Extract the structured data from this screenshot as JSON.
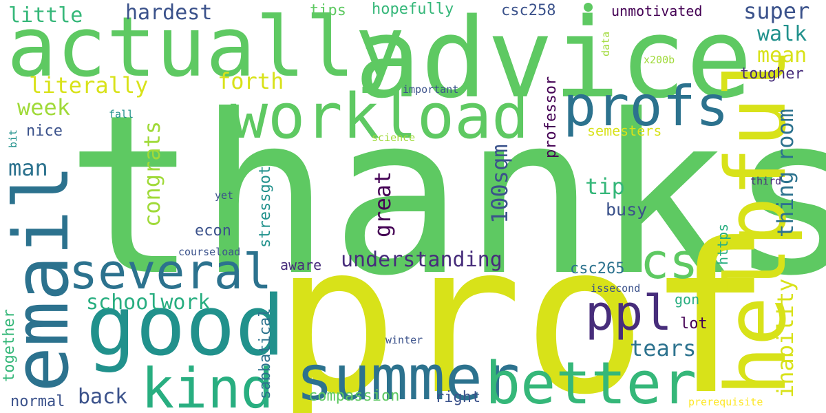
{
  "colors": {
    "background": "#ffffff",
    "palette": [
      "#5ec962",
      "#d8e219",
      "#3b528b",
      "#21918c",
      "#2c728e",
      "#440154",
      "#35b779",
      "#472d7b",
      "#a0da39",
      "#28ae80",
      "#fde725"
    ]
  },
  "words": [
    {
      "text": "thanks",
      "color": "#5ec962",
      "orientation": "horizontal"
    },
    {
      "text": "prof",
      "color": "#d8e219",
      "orientation": "horizontal"
    },
    {
      "text": "advice",
      "color": "#5ec962",
      "orientation": "horizontal"
    },
    {
      "text": "actually",
      "color": "#5ec962",
      "orientation": "horizontal"
    },
    {
      "text": "email",
      "color": "#2c728e",
      "orientation": "vertical"
    },
    {
      "text": "helpful",
      "color": "#d8e219",
      "orientation": "vertical"
    },
    {
      "text": "good",
      "color": "#21918c",
      "orientation": "horizontal"
    },
    {
      "text": "workload",
      "color": "#5ec962",
      "orientation": "horizontal"
    },
    {
      "text": "profs",
      "color": "#2c728e",
      "orientation": "horizontal"
    },
    {
      "text": "summer",
      "color": "#2c728e",
      "orientation": "horizontal"
    },
    {
      "text": "better",
      "color": "#35b779",
      "orientation": "horizontal"
    },
    {
      "text": "kind",
      "color": "#28ae80",
      "orientation": "horizontal"
    },
    {
      "text": "several",
      "color": "#2c728e",
      "orientation": "horizontal"
    },
    {
      "text": "cs",
      "color": "#5ec962",
      "orientation": "horizontal"
    },
    {
      "text": "ppl",
      "color": "#472d7b",
      "orientation": "horizontal"
    },
    {
      "text": "little",
      "color": "#35b779",
      "orientation": "horizontal"
    },
    {
      "text": "hardest",
      "color": "#3b528b",
      "orientation": "horizontal"
    },
    {
      "text": "tips",
      "color": "#5ec962",
      "orientation": "horizontal"
    },
    {
      "text": "hopefully",
      "color": "#35b779",
      "orientation": "horizontal"
    },
    {
      "text": "csc258",
      "color": "#3b528b",
      "orientation": "horizontal"
    },
    {
      "text": "unmotivated",
      "color": "#440154",
      "orientation": "horizontal"
    },
    {
      "text": "super",
      "color": "#3b528b",
      "orientation": "horizontal"
    },
    {
      "text": "walk",
      "color": "#21918c",
      "orientation": "horizontal"
    },
    {
      "text": "mean",
      "color": "#d8e219",
      "orientation": "horizontal"
    },
    {
      "text": "tougher",
      "color": "#472d7b",
      "orientation": "horizontal"
    },
    {
      "text": "literally",
      "color": "#d8e219",
      "orientation": "horizontal"
    },
    {
      "text": "forth",
      "color": "#d8e219",
      "orientation": "horizontal"
    },
    {
      "text": "important",
      "color": "#3b528b",
      "orientation": "horizontal"
    },
    {
      "text": "week",
      "color": "#a0da39",
      "orientation": "horizontal"
    },
    {
      "text": "nice",
      "color": "#3b528b",
      "orientation": "horizontal"
    },
    {
      "text": "fall",
      "color": "#21918c",
      "orientation": "horizontal"
    },
    {
      "text": "bit",
      "color": "#21918c",
      "orientation": "vertical"
    },
    {
      "text": "congrats",
      "color": "#a0da39",
      "orientation": "vertical"
    },
    {
      "text": "science",
      "color": "#a0da39",
      "orientation": "horizontal"
    },
    {
      "text": "semesters",
      "color": "#d8e219",
      "orientation": "horizontal"
    },
    {
      "text": "room",
      "color": "#2c728e",
      "orientation": "vertical"
    },
    {
      "text": "man",
      "color": "#2c728e",
      "orientation": "horizontal"
    },
    {
      "text": "stressgot",
      "color": "#21918c",
      "orientation": "vertical"
    },
    {
      "text": "great",
      "color": "#440154",
      "orientation": "vertical"
    },
    {
      "text": "100sqm",
      "color": "#3b528b",
      "orientation": "vertical"
    },
    {
      "text": "professor",
      "color": "#440154",
      "orientation": "vertical"
    },
    {
      "text": "thing",
      "color": "#2c728e",
      "orientation": "vertical"
    },
    {
      "text": "tip",
      "color": "#35b779",
      "orientation": "horizontal"
    },
    {
      "text": "third",
      "color": "#472d7b",
      "orientation": "horizontal"
    },
    {
      "text": "yet",
      "color": "#3b528b",
      "orientation": "horizontal"
    },
    {
      "text": "busy",
      "color": "#3b528b",
      "orientation": "horizontal"
    },
    {
      "text": "econ",
      "color": "#3b528b",
      "orientation": "horizontal"
    },
    {
      "text": "https",
      "color": "#28ae80",
      "orientation": "vertical"
    },
    {
      "text": "inability",
      "color": "#d8e219",
      "orientation": "vertical"
    },
    {
      "text": "courseload",
      "color": "#3b528b",
      "orientation": "horizontal"
    },
    {
      "text": "understanding",
      "color": "#472d7b",
      "orientation": "horizontal"
    },
    {
      "text": "aware",
      "color": "#472d7b",
      "orientation": "horizontal"
    },
    {
      "text": "csc265",
      "color": "#2c728e",
      "orientation": "horizontal"
    },
    {
      "text": "schoolwork",
      "color": "#28ae80",
      "orientation": "horizontal"
    },
    {
      "text": "issecond",
      "color": "#3b528b",
      "orientation": "horizontal"
    },
    {
      "text": "gon",
      "color": "#28ae80",
      "orientation": "horizontal"
    },
    {
      "text": "lot",
      "color": "#440154",
      "orientation": "horizontal"
    },
    {
      "text": "sabbatical",
      "color": "#2c728e",
      "orientation": "vertical"
    },
    {
      "text": "together",
      "color": "#35b779",
      "orientation": "vertical"
    },
    {
      "text": "winter",
      "color": "#3b528b",
      "orientation": "horizontal"
    },
    {
      "text": "tears",
      "color": "#2c728e",
      "orientation": "horizontal"
    },
    {
      "text": "back",
      "color": "#3b528b",
      "orientation": "horizontal"
    },
    {
      "text": "normal",
      "color": "#3b528b",
      "orientation": "horizontal"
    },
    {
      "text": "compassion",
      "color": "#5ec962",
      "orientation": "horizontal"
    },
    {
      "text": "right",
      "color": "#3b528b",
      "orientation": "horizontal"
    },
    {
      "text": "prerequisite",
      "color": "#fde725",
      "orientation": "horizontal"
    },
    {
      "text": "data",
      "color": "#a0da39",
      "orientation": "vertical"
    },
    {
      "text": "x200b",
      "color": "#a0da39",
      "orientation": "horizontal"
    }
  ]
}
